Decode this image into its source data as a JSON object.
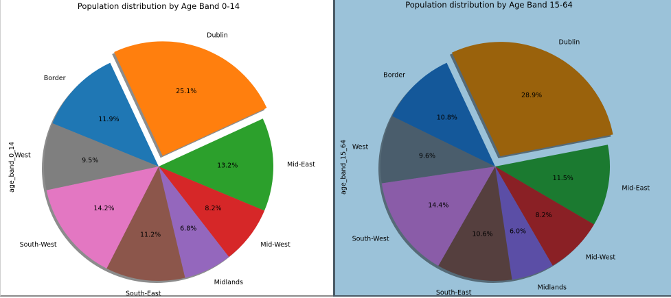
{
  "chart_data": [
    {
      "type": "pie",
      "title": "Population distribution by Age Band 0-14",
      "ylabel": "age_band_0_14",
      "slices": [
        {
          "label": "Dublin",
          "value": 25.1,
          "pct_label": "25.1%",
          "color": "#ff7f0e",
          "explode": true
        },
        {
          "label": "Mid-East",
          "value": 13.2,
          "pct_label": "13.2%",
          "color": "#2ca02c",
          "explode": false
        },
        {
          "label": "Mid-West",
          "value": 8.2,
          "pct_label": "8.2%",
          "color": "#d62728",
          "explode": false
        },
        {
          "label": "Midlands",
          "value": 6.8,
          "pct_label": "6.8%",
          "color": "#9467bd",
          "explode": false
        },
        {
          "label": "South-East",
          "value": 11.2,
          "pct_label": "11.2%",
          "color": "#8c564b",
          "explode": false
        },
        {
          "label": "South-West",
          "value": 14.2,
          "pct_label": "14.2%",
          "color": "#e377c2",
          "explode": false
        },
        {
          "label": "West",
          "value": 9.5,
          "pct_label": "9.5%",
          "color": "#7f7f7f",
          "explode": false
        },
        {
          "label": "Border",
          "value": 11.9,
          "pct_label": "11.9%",
          "color": "#1f77b4",
          "explode": false
        }
      ],
      "shadow": true
    },
    {
      "type": "pie",
      "title": "Population distribution by Age Band 15-64",
      "ylabel": "age_band_15_64",
      "slices": [
        {
          "label": "Dublin",
          "value": 28.9,
          "pct_label": "28.9%",
          "color": "#9a620c",
          "explode": true
        },
        {
          "label": "Mid-East",
          "value": 11.5,
          "pct_label": "11.5%",
          "color": "#1b7a30",
          "explode": false
        },
        {
          "label": "Mid-West",
          "value": 8.2,
          "pct_label": "8.2%",
          "color": "#8a2025",
          "explode": false
        },
        {
          "label": "Midlands",
          "value": 6.0,
          "pct_label": "6.0%",
          "color": "#5b4ea6",
          "explode": false
        },
        {
          "label": "South-East",
          "value": 10.6,
          "pct_label": "10.6%",
          "color": "#553f3e",
          "explode": false
        },
        {
          "label": "South-West",
          "value": 14.4,
          "pct_label": "14.4%",
          "color": "#8a5ca8",
          "explode": false
        },
        {
          "label": "West",
          "value": 9.6,
          "pct_label": "9.6%",
          "color": "#4a5d6c",
          "explode": false
        },
        {
          "label": "Border",
          "value": 10.8,
          "pct_label": "10.8%",
          "color": "#14589a",
          "explode": false
        }
      ],
      "shadow": true
    }
  ]
}
